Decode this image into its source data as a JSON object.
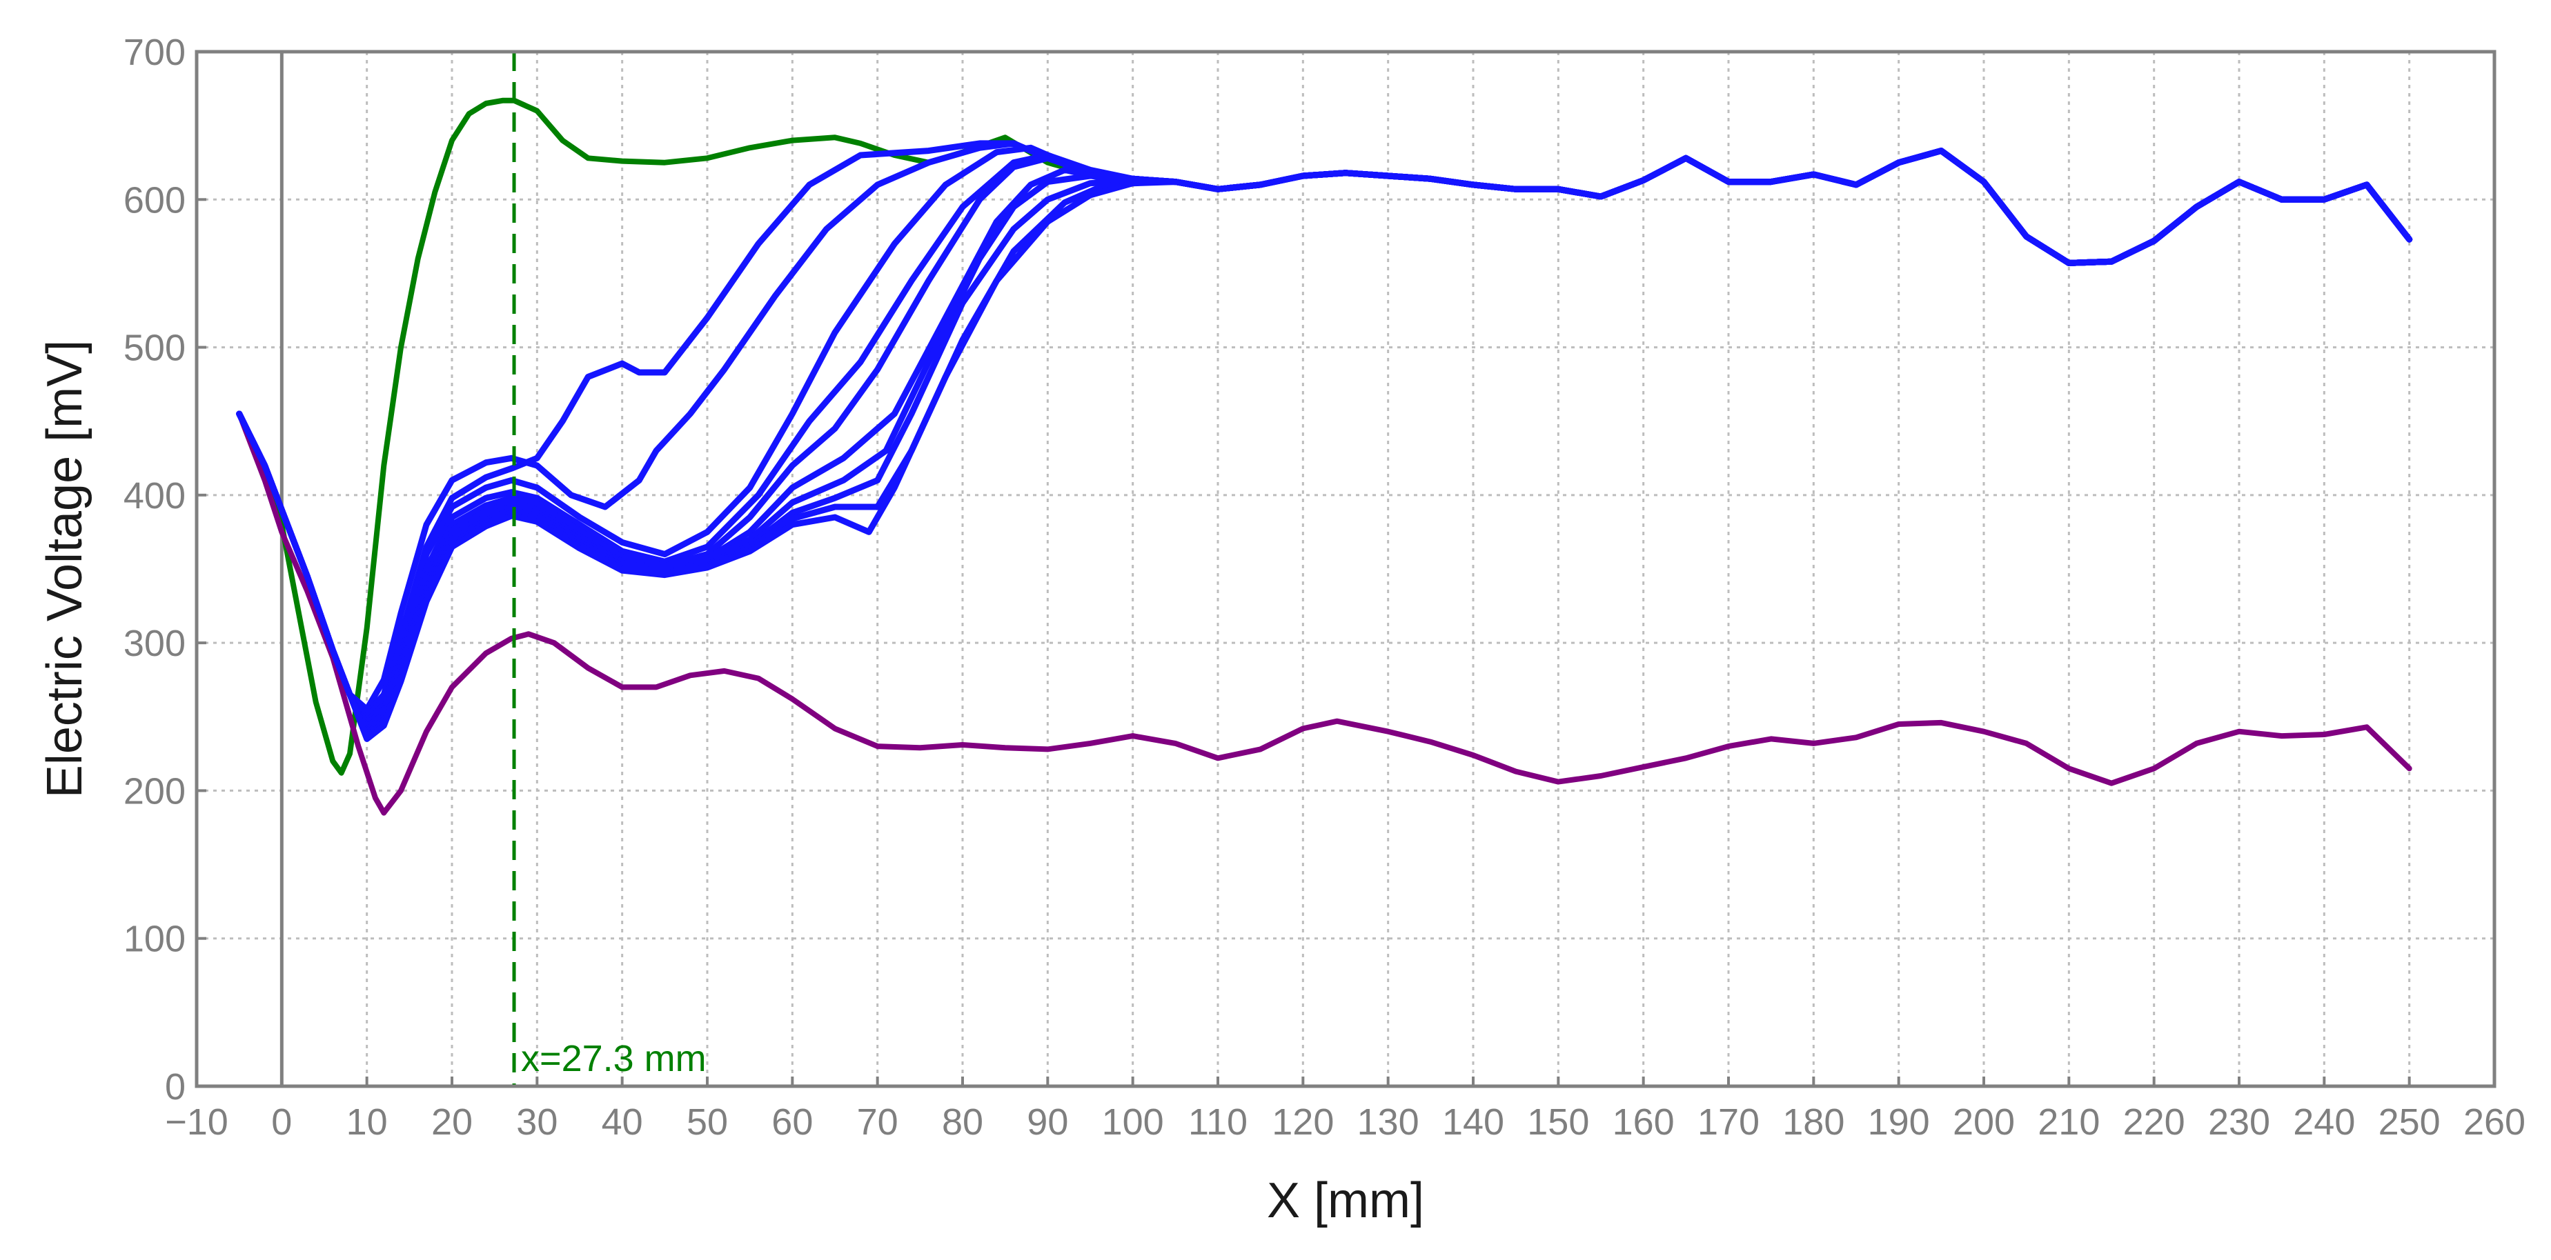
{
  "chart_data": {
    "type": "line",
    "xlabel": "X [mm]",
    "ylabel": "Electric Voltage [mV]",
    "xlim": [
      -10,
      260
    ],
    "ylim": [
      0,
      700
    ],
    "xticks": [
      -10,
      0,
      10,
      20,
      30,
      40,
      50,
      60,
      70,
      80,
      90,
      100,
      110,
      120,
      130,
      140,
      150,
      160,
      170,
      180,
      190,
      200,
      210,
      220,
      230,
      240,
      250,
      260
    ],
    "xtick_labels": [
      "−10",
      "0",
      "10",
      "20",
      "30",
      "40",
      "50",
      "60",
      "70",
      "80",
      "90",
      "100",
      "110",
      "120",
      "130",
      "140",
      "150",
      "160",
      "170",
      "180",
      "190",
      "200",
      "210",
      "220",
      "230",
      "240",
      "250",
      "260"
    ],
    "yticks": [
      0,
      100,
      200,
      300,
      400,
      500,
      600,
      700
    ],
    "ytick_labels": [
      "0",
      "100",
      "200",
      "300",
      "400",
      "500",
      "600",
      "700"
    ],
    "grid": true,
    "grid_style": "dotted",
    "colors": {
      "green": "#008000",
      "blue": "#1414ff",
      "purple": "#800080",
      "zero_line": "#808080"
    },
    "zero_line_x": 0,
    "annotation": {
      "text": "x=27.3 mm",
      "x": 27.3,
      "color": "#008000",
      "style": "dashed"
    },
    "tail": {
      "x": [
        100,
        105,
        110,
        115,
        120,
        125,
        130,
        135,
        140,
        145,
        150,
        155,
        160,
        165,
        170,
        175,
        180,
        185,
        190,
        195,
        200,
        205,
        210,
        215,
        220,
        225,
        230,
        235,
        240,
        245,
        250
      ],
      "y": [
        613,
        612,
        607,
        610,
        616,
        618,
        616,
        614,
        610,
        607,
        607,
        602,
        613,
        628,
        612,
        612,
        617,
        610,
        625,
        633,
        612,
        575,
        557,
        558,
        572,
        595,
        612,
        600,
        600,
        610,
        573
      ]
    },
    "series": [
      {
        "color": "green",
        "x": [
          -5,
          -2,
          0,
          2,
          4,
          6,
          7,
          8,
          10,
          12,
          14,
          16,
          18,
          20,
          22,
          24,
          26,
          27.3,
          30,
          33,
          36,
          40,
          45,
          50,
          55,
          60,
          65,
          68,
          72,
          76,
          80,
          85,
          90,
          95,
          100
        ],
        "y": [
          455,
          420,
          380,
          320,
          260,
          220,
          212,
          225,
          310,
          420,
          500,
          560,
          605,
          640,
          658,
          665,
          667,
          667,
          660,
          640,
          628,
          626,
          625,
          628,
          635,
          640,
          642,
          638,
          630,
          625,
          632,
          642,
          625,
          617,
          614
        ]
      },
      {
        "color": "blue",
        "x": [
          -5,
          -2,
          0,
          3,
          6,
          8,
          10,
          12,
          14,
          17,
          20,
          24,
          27,
          30,
          34,
          38,
          42,
          44,
          48,
          52,
          58,
          64,
          70,
          76,
          82,
          86,
          90,
          95,
          100
        ],
        "y": [
          455,
          420,
          390,
          345,
          295,
          265,
          255,
          275,
          320,
          380,
          410,
          422,
          425,
          420,
          400,
          392,
          410,
          430,
          455,
          485,
          535,
          580,
          610,
          625,
          635,
          638,
          628,
          618,
          614
        ]
      },
      {
        "color": "blue",
        "x": [
          -5,
          -2,
          0,
          3,
          6,
          8,
          10,
          12,
          14,
          17,
          20,
          24,
          27,
          30,
          33,
          36,
          40,
          42,
          45,
          50,
          56,
          62,
          68,
          76,
          82,
          86,
          90,
          95,
          100
        ],
        "y": [
          455,
          420,
          390,
          345,
          295,
          265,
          252,
          265,
          305,
          365,
          398,
          412,
          418,
          425,
          450,
          480,
          489,
          483,
          483,
          520,
          570,
          610,
          630,
          633,
          638,
          638,
          628,
          618,
          614
        ]
      },
      {
        "color": "blue",
        "x": [
          -5,
          -2,
          0,
          3,
          6,
          8,
          10,
          12,
          14,
          17,
          20,
          24,
          27,
          30,
          35,
          40,
          45,
          50,
          55,
          60,
          65,
          72,
          78,
          84,
          88,
          92,
          96,
          100
        ],
        "y": [
          455,
          420,
          390,
          345,
          295,
          265,
          250,
          262,
          300,
          360,
          392,
          405,
          410,
          405,
          385,
          368,
          360,
          375,
          405,
          455,
          510,
          570,
          610,
          632,
          635,
          625,
          617,
          614
        ]
      },
      {
        "color": "blue",
        "x": [
          -5,
          -2,
          0,
          3,
          6,
          8,
          10,
          12,
          14,
          17,
          20,
          24,
          27,
          30,
          35,
          40,
          45,
          50,
          56,
          62,
          68,
          74,
          80,
          86,
          90,
          95,
          100
        ],
        "y": [
          455,
          420,
          390,
          345,
          295,
          265,
          247,
          258,
          292,
          350,
          385,
          398,
          402,
          398,
          380,
          362,
          355,
          365,
          400,
          450,
          490,
          545,
          595,
          625,
          630,
          620,
          614
        ]
      },
      {
        "color": "blue",
        "x": [
          -5,
          -2,
          0,
          3,
          6,
          8,
          10,
          12,
          14,
          17,
          20,
          24,
          27,
          30,
          35,
          40,
          45,
          50,
          55,
          60,
          65,
          70,
          76,
          82,
          86,
          90,
          95,
          100
        ],
        "y": [
          455,
          420,
          390,
          345,
          295,
          265,
          245,
          255,
          288,
          345,
          380,
          393,
          398,
          394,
          376,
          358,
          352,
          360,
          385,
          420,
          445,
          485,
          545,
          600,
          622,
          628,
          618,
          614
        ]
      },
      {
        "color": "blue",
        "x": [
          -5,
          -2,
          0,
          3,
          6,
          8,
          10,
          12,
          14,
          17,
          20,
          24,
          27,
          30,
          35,
          40,
          45,
          50,
          55,
          60,
          66,
          72,
          78,
          84,
          88,
          92,
          96,
          100
        ],
        "y": [
          455,
          420,
          390,
          345,
          295,
          265,
          243,
          252,
          285,
          340,
          376,
          389,
          395,
          390,
          372,
          355,
          350,
          357,
          375,
          405,
          425,
          455,
          520,
          585,
          610,
          620,
          615,
          614
        ]
      },
      {
        "color": "blue",
        "x": [
          -5,
          -2,
          0,
          3,
          6,
          8,
          10,
          12,
          14,
          17,
          20,
          24,
          27,
          30,
          35,
          40,
          45,
          50,
          55,
          60,
          66,
          71,
          76,
          82,
          86,
          90,
          95,
          100
        ],
        "y": [
          455,
          420,
          390,
          345,
          295,
          265,
          241,
          250,
          282,
          336,
          373,
          386,
          392,
          388,
          370,
          354,
          349,
          355,
          370,
          395,
          410,
          430,
          490,
          560,
          595,
          612,
          616,
          614
        ]
      },
      {
        "color": "blue",
        "x": [
          -5,
          -2,
          0,
          3,
          6,
          8,
          10,
          12,
          14,
          17,
          20,
          24,
          27,
          30,
          35,
          40,
          45,
          50,
          55,
          60,
          65,
          70,
          74,
          80,
          86,
          90,
          95,
          100
        ],
        "y": [
          455,
          420,
          390,
          345,
          295,
          265,
          239,
          248,
          279,
          333,
          370,
          383,
          390,
          386,
          368,
          352,
          348,
          353,
          366,
          388,
          398,
          410,
          455,
          530,
          580,
          600,
          611,
          613
        ]
      },
      {
        "color": "blue",
        "x": [
          -5,
          -2,
          0,
          3,
          6,
          8,
          10,
          12,
          14,
          17,
          20,
          24,
          27,
          30,
          35,
          40,
          45,
          50,
          55,
          60,
          65,
          70,
          74,
          80,
          86,
          92,
          96,
          100
        ],
        "y": [
          455,
          420,
          390,
          345,
          295,
          265,
          237,
          246,
          276,
          330,
          367,
          381,
          388,
          384,
          366,
          350,
          347,
          352,
          364,
          384,
          392,
          392,
          430,
          505,
          565,
          598,
          608,
          612
        ]
      },
      {
        "color": "blue",
        "x": [
          -5,
          -2,
          0,
          3,
          6,
          8,
          10,
          12,
          14,
          17,
          20,
          24,
          27,
          30,
          35,
          40,
          45,
          50,
          55,
          60,
          65,
          69,
          72,
          78,
          84,
          90,
          95,
          100
        ],
        "y": [
          455,
          420,
          390,
          345,
          295,
          265,
          235,
          244,
          274,
          328,
          365,
          379,
          386,
          382,
          364,
          349,
          346,
          351,
          362,
          380,
          385,
          375,
          405,
          480,
          545,
          585,
          603,
          611
        ]
      },
      {
        "color": "purple",
        "x": [
          -5,
          -2,
          0,
          3,
          6,
          9,
          11,
          12,
          14,
          17,
          20,
          24,
          27,
          29,
          32,
          36,
          40,
          44,
          48,
          52,
          56,
          60,
          65,
          70,
          75,
          80,
          85,
          90,
          95,
          100,
          105,
          110,
          115,
          120,
          124,
          130,
          135,
          140,
          145,
          150,
          155,
          160,
          165,
          170,
          175,
          180,
          185,
          190,
          195,
          200,
          205,
          210,
          215,
          220,
          225,
          230,
          235,
          240,
          245,
          250
        ],
        "y": [
          455,
          410,
          375,
          335,
          290,
          230,
          195,
          185,
          200,
          240,
          270,
          293,
          303,
          306,
          300,
          283,
          270,
          270,
          278,
          281,
          276,
          262,
          242,
          230,
          229,
          231,
          229,
          228,
          232,
          237,
          232,
          222,
          228,
          242,
          247,
          240,
          233,
          224,
          213,
          206,
          210,
          216,
          222,
          230,
          235,
          232,
          236,
          245,
          246,
          240,
          232,
          215,
          205,
          215,
          232,
          240,
          237,
          238,
          243,
          215
        ]
      }
    ]
  }
}
